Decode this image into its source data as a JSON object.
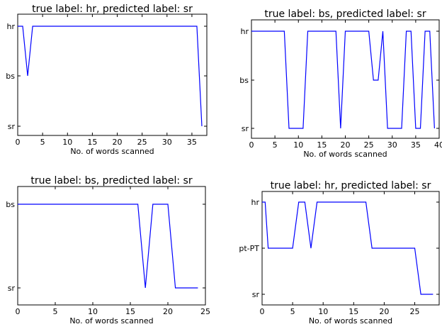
{
  "chart_data": [
    {
      "type": "line",
      "title": "true label: hr,   predicted label: sr",
      "xlabel": "No. of words scanned",
      "ylabel": "",
      "xlim": [
        0,
        38
      ],
      "xticks": [
        0,
        5,
        10,
        15,
        20,
        25,
        30,
        35
      ],
      "categories": [
        "sr",
        "bs",
        "hr"
      ],
      "series": [
        {
          "x": [
            0,
            1,
            2,
            3,
            36,
            37
          ],
          "y": [
            "hr",
            "hr",
            "bs",
            "hr",
            "hr",
            "sr"
          ]
        }
      ]
    },
    {
      "type": "line",
      "title": "true label: bs,   predicted label: sr",
      "xlabel": "No. of words scanned",
      "ylabel": "",
      "xlim": [
        0,
        40
      ],
      "xticks": [
        0,
        5,
        10,
        15,
        20,
        25,
        30,
        35,
        40
      ],
      "categories": [
        "sr",
        "bs",
        "hr"
      ],
      "series": [
        {
          "x": [
            0,
            7,
            8,
            11,
            12,
            18,
            19,
            20,
            25,
            26,
            27,
            28,
            29,
            32,
            33,
            34,
            35,
            36,
            37,
            38,
            39
          ],
          "y": [
            "hr",
            "hr",
            "sr",
            "sr",
            "hr",
            "hr",
            "sr",
            "hr",
            "hr",
            "bs",
            "bs",
            "hr",
            "sr",
            "sr",
            "hr",
            "hr",
            "sr",
            "sr",
            "hr",
            "hr",
            "sr"
          ]
        }
      ]
    },
    {
      "type": "line",
      "title": "true label: bs,   predicted label: sr",
      "xlabel": "No. of words scanned",
      "ylabel": "",
      "xlim": [
        0,
        25
      ],
      "xticks": [
        0,
        5,
        10,
        15,
        20,
        25
      ],
      "categories": [
        "sr",
        "bs"
      ],
      "series": [
        {
          "x": [
            0,
            16,
            17,
            18,
            20,
            21,
            24
          ],
          "y": [
            "bs",
            "bs",
            "sr",
            "bs",
            "bs",
            "sr",
            "sr"
          ]
        }
      ]
    },
    {
      "type": "line",
      "title": "true label: hr,   predicted label: sr",
      "xlabel": "No. of words scanned",
      "ylabel": "",
      "xlim": [
        0,
        29
      ],
      "xticks": [
        0,
        5,
        10,
        15,
        20,
        25
      ],
      "categories": [
        "sr",
        "pt-PT",
        "hr"
      ],
      "series": [
        {
          "x": [
            0,
            0.5,
            1,
            2,
            5,
            6,
            7,
            8,
            9,
            17,
            18,
            25,
            26,
            28
          ],
          "y": [
            "hr",
            "hr",
            "pt-PT",
            "pt-PT",
            "pt-PT",
            "hr",
            "hr",
            "pt-PT",
            "hr",
            "hr",
            "pt-PT",
            "pt-PT",
            "sr",
            "sr"
          ]
        }
      ]
    }
  ]
}
